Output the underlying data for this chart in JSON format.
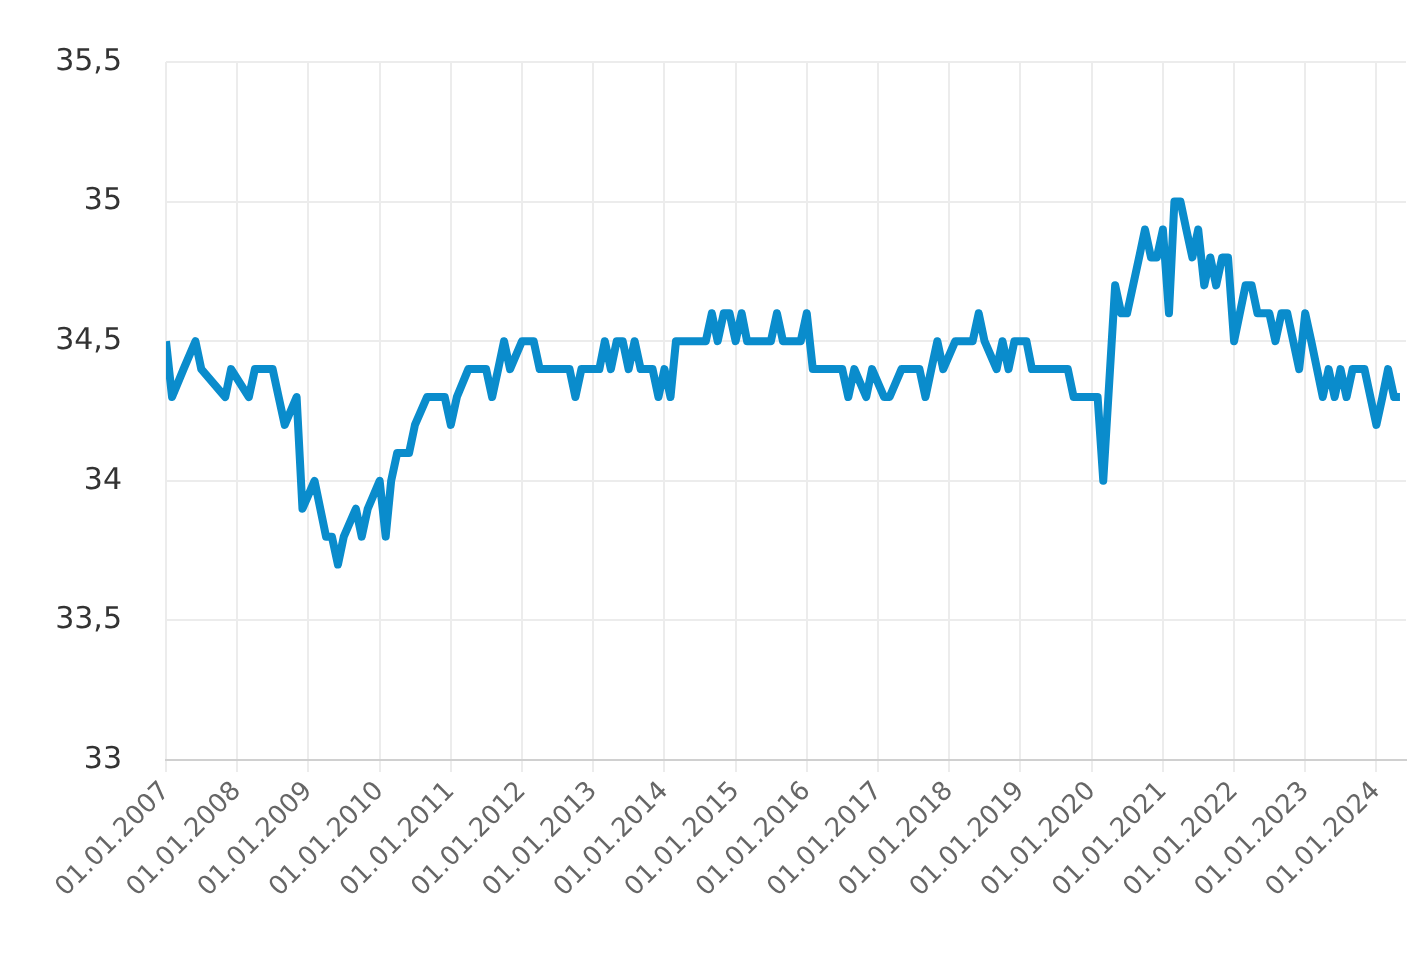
{
  "chart_data": {
    "type": "line",
    "color": "#0a8ccc",
    "grid": true,
    "legend": false,
    "marker": "none",
    "line_style": "solid",
    "x": [
      "2007-01",
      "2007-02",
      "2007-04",
      "2007-06",
      "2007-07",
      "2007-11",
      "2007-12",
      "2008-03",
      "2008-04",
      "2008-07",
      "2008-08",
      "2008-09",
      "2008-11",
      "2008-12",
      "2009-02",
      "2009-04",
      "2009-05",
      "2009-06",
      "2009-07",
      "2009-09",
      "2009-10",
      "2009-11",
      "2010-01",
      "2010-02",
      "2010-03",
      "2010-04",
      "2010-06",
      "2010-07",
      "2010-09",
      "2010-12",
      "2011-01",
      "2011-02",
      "2011-04",
      "2011-07",
      "2011-08",
      "2011-09",
      "2011-10",
      "2011-11",
      "2012-01",
      "2012-03",
      "2012-04",
      "2012-09",
      "2012-10",
      "2012-11",
      "2013-02",
      "2013-03",
      "2013-04",
      "2013-05",
      "2013-06",
      "2013-07",
      "2013-08",
      "2013-09",
      "2013-11",
      "2013-12",
      "2014-01",
      "2014-02",
      "2014-03",
      "2014-08",
      "2014-09",
      "2014-10",
      "2014-11",
      "2014-12",
      "2015-01",
      "2015-02",
      "2015-03",
      "2015-07",
      "2015-08",
      "2015-09",
      "2015-12",
      "2016-01",
      "2016-02",
      "2016-07",
      "2016-08",
      "2016-09",
      "2016-11",
      "2016-12",
      "2017-02",
      "2017-03",
      "2017-05",
      "2017-08",
      "2017-09",
      "2017-10",
      "2017-11",
      "2017-12",
      "2018-02",
      "2018-05",
      "2018-06",
      "2018-07",
      "2018-09",
      "2018-10",
      "2018-11",
      "2018-12",
      "2019-02",
      "2019-03",
      "2019-09",
      "2019-10",
      "2020-02",
      "2020-03",
      "2020-05",
      "2020-06",
      "2020-07",
      "2020-09",
      "2020-10",
      "2020-11",
      "2020-12",
      "2021-01",
      "2021-02",
      "2021-03",
      "2021-04",
      "2021-05",
      "2021-06",
      "2021-07",
      "2021-08",
      "2021-09",
      "2021-10",
      "2021-11",
      "2021-12",
      "2022-01",
      "2022-03",
      "2022-04",
      "2022-05",
      "2022-07",
      "2022-08",
      "2022-09",
      "2022-10",
      "2022-12",
      "2023-01",
      "2023-02",
      "2023-04",
      "2023-05",
      "2023-06",
      "2023-07",
      "2023-08",
      "2023-09",
      "2023-11",
      "2024-01",
      "2024-02",
      "2024-03",
      "2024-04",
      "2024-05"
    ],
    "values": [
      34.5,
      34.3,
      34.4,
      34.5,
      34.4,
      34.3,
      34.4,
      34.3,
      34.4,
      34.4,
      34.3,
      34.2,
      34.3,
      33.9,
      34.0,
      33.8,
      33.8,
      33.7,
      33.8,
      33.9,
      33.8,
      33.9,
      34.0,
      33.8,
      34.0,
      34.1,
      34.1,
      34.2,
      34.3,
      34.3,
      34.2,
      34.3,
      34.4,
      34.4,
      34.3,
      34.4,
      34.5,
      34.4,
      34.5,
      34.5,
      34.4,
      34.4,
      34.3,
      34.4,
      34.4,
      34.5,
      34.4,
      34.5,
      34.5,
      34.4,
      34.5,
      34.4,
      34.4,
      34.3,
      34.4,
      34.3,
      34.5,
      34.5,
      34.6,
      34.5,
      34.6,
      34.6,
      34.5,
      34.6,
      34.5,
      34.5,
      34.6,
      34.5,
      34.5,
      34.6,
      34.4,
      34.4,
      34.3,
      34.4,
      34.3,
      34.4,
      34.3,
      34.3,
      34.4,
      34.4,
      34.3,
      34.4,
      34.5,
      34.4,
      34.5,
      34.5,
      34.6,
      34.5,
      34.4,
      34.5,
      34.4,
      34.5,
      34.5,
      34.4,
      34.4,
      34.3,
      34.3,
      34.0,
      34.7,
      34.6,
      34.6,
      34.8,
      34.9,
      34.8,
      34.8,
      34.9,
      34.6,
      35.0,
      35.0,
      34.9,
      34.8,
      34.9,
      34.7,
      34.8,
      34.7,
      34.8,
      34.8,
      34.5,
      34.7,
      34.7,
      34.6,
      34.6,
      34.5,
      34.6,
      34.6,
      34.4,
      34.6,
      34.5,
      34.3,
      34.4,
      34.3,
      34.4,
      34.3,
      34.4,
      34.4,
      34.2,
      34.3,
      34.4,
      34.3,
      34.3
    ],
    "xlim": [
      "2007-01",
      "2024-06"
    ],
    "xticks": [
      {
        "value": "2007-01",
        "label": "01.01.2007"
      },
      {
        "value": "2008-01",
        "label": "01.01.2008"
      },
      {
        "value": "2009-01",
        "label": "01.01.2009"
      },
      {
        "value": "2010-01",
        "label": "01.01.2010"
      },
      {
        "value": "2011-01",
        "label": "01.01.2011"
      },
      {
        "value": "2012-01",
        "label": "01.01.2012"
      },
      {
        "value": "2013-01",
        "label": "01.01.2013"
      },
      {
        "value": "2014-01",
        "label": "01.01.2014"
      },
      {
        "value": "2015-01",
        "label": "01.01.2015"
      },
      {
        "value": "2016-01",
        "label": "01.01.2016"
      },
      {
        "value": "2017-01",
        "label": "01.01.2017"
      },
      {
        "value": "2018-01",
        "label": "01.01.2018"
      },
      {
        "value": "2019-01",
        "label": "01.01.2019"
      },
      {
        "value": "2020-01",
        "label": "01.01.2020"
      },
      {
        "value": "2021-01",
        "label": "01.01.2021"
      },
      {
        "value": "2022-01",
        "label": "01.01.2022"
      },
      {
        "value": "2023-01",
        "label": "01.01.2023"
      },
      {
        "value": "2024-01",
        "label": "01.01.2024"
      }
    ],
    "ylim": [
      33,
      35.5
    ],
    "yticks": [
      33,
      {
        "value": 33.5,
        "label": "33,5"
      },
      34,
      {
        "value": 34.5,
        "label": "34,5"
      },
      35,
      {
        "value": 35.5,
        "label": "35,5"
      }
    ]
  }
}
